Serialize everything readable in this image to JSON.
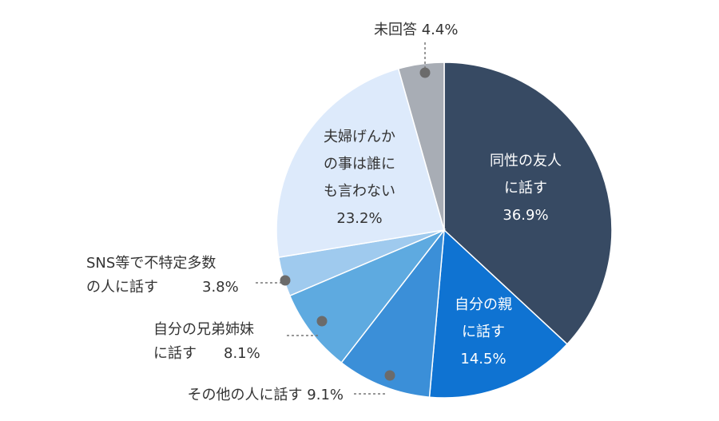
{
  "chart_data": {
    "type": "pie",
    "unit": "%",
    "start_angle_deg": 0,
    "direction": "clockwise",
    "slices": [
      {
        "label_lines": [
          "同性の友人",
          "に話す"
        ],
        "value": 36.9,
        "value_text": "36.9%",
        "color": "#374a63",
        "label_color": "#ffffff",
        "label_mode": "inside"
      },
      {
        "label_lines": [
          "自分の親",
          "に話す"
        ],
        "value": 14.5,
        "value_text": "14.5%",
        "color": "#0f73d2",
        "label_color": "#ffffff",
        "label_mode": "inside"
      },
      {
        "label_lines": [
          "その他の人に話す"
        ],
        "value": 9.1,
        "value_text": "9.1%",
        "color": "#3b8fd8",
        "label_color": "#333333",
        "label_mode": "outside"
      },
      {
        "label_lines": [
          "自分の兄弟姉妹",
          "に話す"
        ],
        "value": 8.1,
        "value_text": "8.1%",
        "color": "#5eaae0",
        "label_color": "#333333",
        "label_mode": "outside"
      },
      {
        "label_lines": [
          "SNS等で不特定多数",
          "の人に話す"
        ],
        "value": 3.8,
        "value_text": "3.8%",
        "color": "#9fcaee",
        "label_color": "#333333",
        "label_mode": "outside"
      },
      {
        "label_lines": [
          "夫婦げんか",
          "の事は誰に",
          "も言わない"
        ],
        "value": 23.2,
        "value_text": "23.2%",
        "color": "#ddeafb",
        "label_color": "#333333",
        "label_mode": "inside"
      },
      {
        "label_lines": [
          "未回答"
        ],
        "value": 4.4,
        "value_text": "4.4%",
        "color": "#a8adb5",
        "label_color": "#333333",
        "label_mode": "outside"
      }
    ]
  }
}
